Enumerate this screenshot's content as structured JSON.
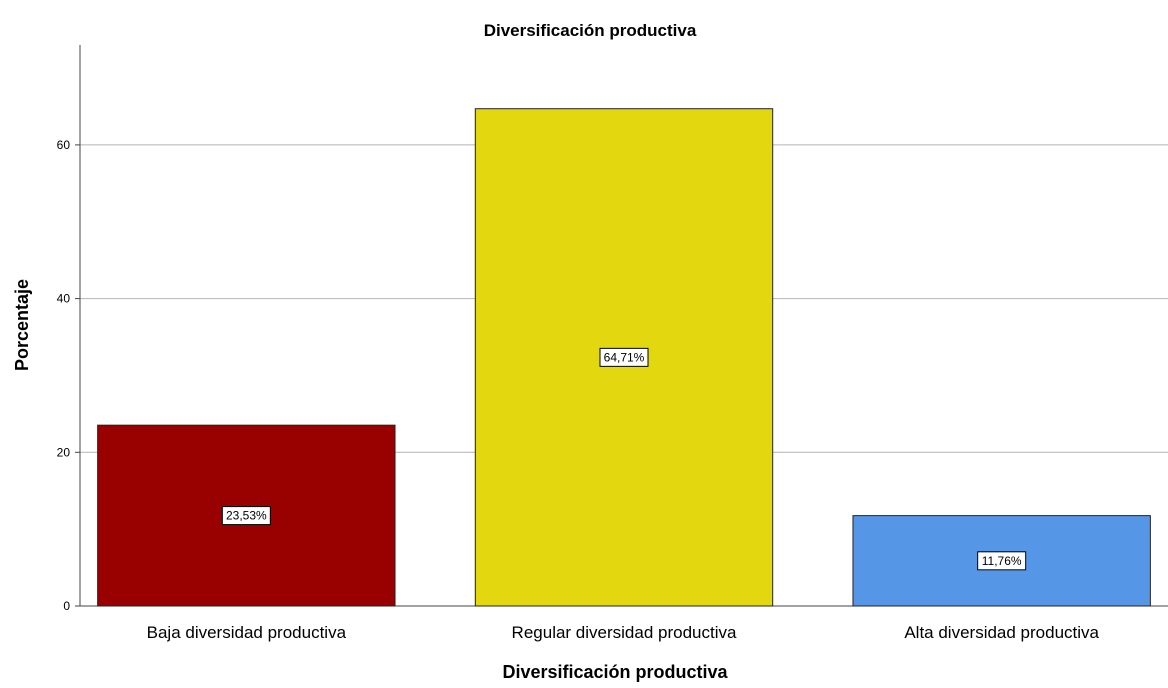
{
  "chart_data": {
    "type": "bar",
    "title": "Diversificación productiva",
    "xlabel": "Diversificación productiva",
    "ylabel": "Porcentaje",
    "categories": [
      "Baja diversidad productiva",
      "Regular diversidad productiva",
      "Alta diversidad productiva"
    ],
    "values": [
      23.53,
      64.71,
      11.76
    ],
    "data_labels": [
      "23,53%",
      "64,71%",
      "11,76%"
    ],
    "colors": [
      "#990000",
      "#e3d80f",
      "#5596e6"
    ],
    "ylim": [
      0,
      73
    ],
    "yticks": [
      0,
      20,
      40,
      60
    ],
    "grid": true,
    "legend": false
  }
}
